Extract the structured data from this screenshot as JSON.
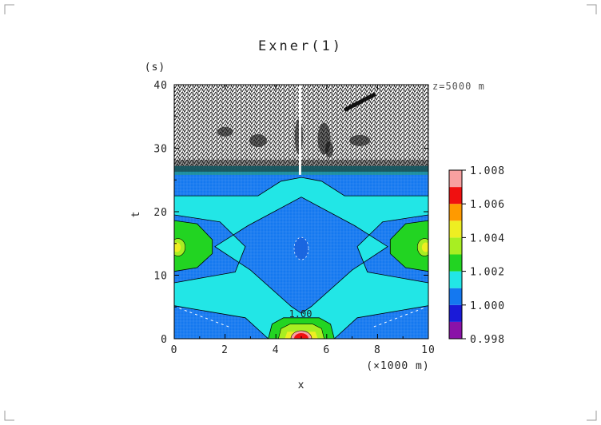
{
  "chart_data": {
    "type": "heatmap",
    "title": "Exner(1)",
    "xlabel": "x",
    "xunit": "(×1000 m)",
    "ylabel": "t",
    "yunit": "(s)",
    "annotation_level": "z=5000 m",
    "contour_label": "1.00",
    "xlim": [
      0,
      10
    ],
    "ylim": [
      0,
      40
    ],
    "xticks": [
      "0",
      "2",
      "4",
      "6",
      "8",
      "10"
    ],
    "yticks": [
      "0",
      "10",
      "20",
      "30",
      "40"
    ],
    "colorbar": {
      "levels": [
        0.998,
        1.0,
        1.002,
        1.004,
        1.006,
        1.008
      ],
      "tick_labels": [
        "0.998",
        "1.000",
        "1.002",
        "1.004",
        "1.006",
        "1.008"
      ],
      "colors": [
        "#8a12a8",
        "#1a1ad8",
        "#1478f0",
        "#22e6e6",
        "#22d422",
        "#a8ee22",
        "#eeee22",
        "#ff9a00",
        "#f01010",
        "#f8a0a0"
      ]
    },
    "field_colors": {
      "background": "#1478f0",
      "band_1_002": "#22e6e6",
      "band_1_003": "#22d422",
      "band_1_004": "#a8ee22",
      "band_1_005": "#eeee22",
      "peak_high": "#f01010",
      "noise": "#111111"
    }
  }
}
